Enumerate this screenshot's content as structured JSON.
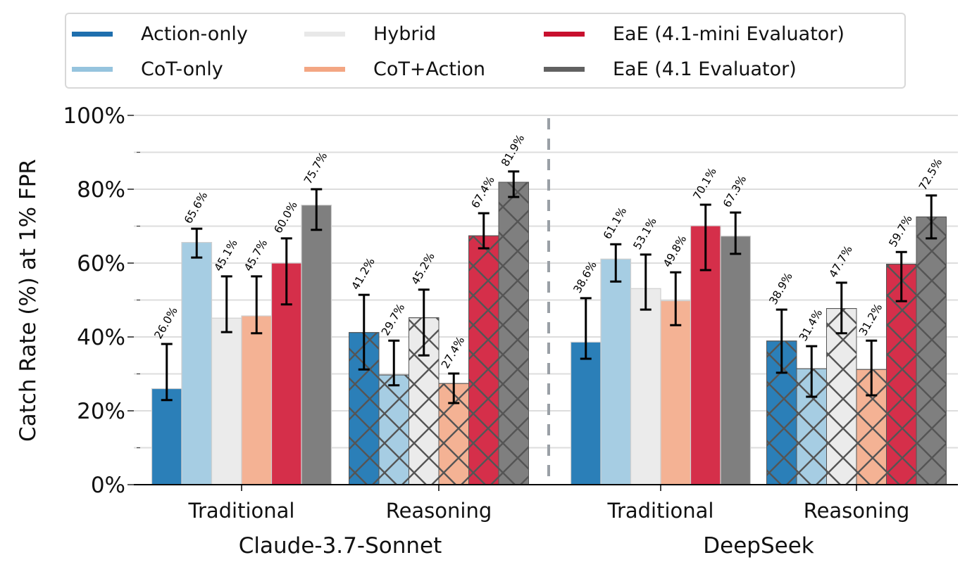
{
  "chart_data": {
    "type": "bar",
    "title": "",
    "ylabel": "Catch Rate (%) at 1% FPR",
    "xlabel": "",
    "ylim": [
      0,
      100
    ],
    "yticks": [
      0,
      20,
      40,
      60,
      80,
      100
    ],
    "ytick_labels": [
      "0%",
      "20%",
      "40%",
      "60%",
      "80%",
      "100%"
    ],
    "minor_yticks": [
      10,
      30,
      50,
      70,
      90
    ],
    "grid": true,
    "legend_position": "top (above plot), 3 columns",
    "groups": [
      {
        "name": "Claude-3.7-Sonnet",
        "categories": [
          "Traditional",
          "Reasoning"
        ]
      },
      {
        "name": "DeepSeek",
        "categories": [
          "Traditional",
          "Reasoning"
        ]
      }
    ],
    "categories": [
      "Claude-3.7-Sonnet / Traditional",
      "Claude-3.7-Sonnet / Reasoning",
      "DeepSeek / Traditional",
      "DeepSeek / Reasoning"
    ],
    "category_labels": [
      "Traditional",
      "Reasoning",
      "Traditional",
      "Reasoning"
    ],
    "hatched_categories": [
      false,
      true,
      false,
      true
    ],
    "series": [
      {
        "name": "Action-only",
        "color": "#2b7fb8",
        "legend_color": "#1f6fae",
        "values": [
          26.0,
          41.2,
          38.6,
          38.9
        ],
        "err_low": [
          22.9,
          31.2,
          34.1,
          30.3
        ],
        "err_high": [
          38.1,
          51.4,
          50.5,
          47.4
        ]
      },
      {
        "name": "CoT-only",
        "color": "#a6cde3",
        "legend_color": "#96c4de",
        "values": [
          65.6,
          29.7,
          61.1,
          31.4
        ],
        "err_low": [
          61.5,
          26.9,
          55.0,
          23.8
        ],
        "err_high": [
          69.3,
          39.0,
          65.1,
          37.5
        ]
      },
      {
        "name": "Hybrid",
        "color": "#ebebeb",
        "legend_color": "#e8e8e8",
        "values": [
          45.1,
          45.2,
          53.1,
          47.7
        ],
        "err_low": [
          41.3,
          35.0,
          47.4,
          41.0
        ],
        "err_high": [
          56.4,
          52.8,
          62.3,
          54.7
        ]
      },
      {
        "name": "CoT+Action",
        "color": "#f4b294",
        "legend_color": "#f3a683",
        "values": [
          45.7,
          27.4,
          49.8,
          31.2
        ],
        "err_low": [
          41.0,
          22.1,
          43.2,
          24.2
        ],
        "err_high": [
          56.4,
          30.1,
          57.5,
          39.0
        ]
      },
      {
        "name": "EaE (4.1-mini Evaluator)",
        "color": "#d52f4a",
        "legend_color": "#c8102e",
        "values": [
          60.0,
          67.4,
          70.1,
          59.7
        ],
        "err_low": [
          48.8,
          64.0,
          58.1,
          49.7
        ],
        "err_high": [
          66.7,
          73.5,
          75.8,
          63.0
        ]
      },
      {
        "name": "EaE (4.1 Evaluator)",
        "color": "#7f7f7f",
        "legend_color": "#616161",
        "values": [
          75.7,
          81.9,
          67.3,
          72.5
        ],
        "err_low": [
          69.0,
          77.9,
          62.5,
          66.7
        ],
        "err_high": [
          80.0,
          84.8,
          73.7,
          78.3
        ]
      }
    ],
    "value_label_suffix": "%",
    "divider": "dashed vertical line between Claude-3.7-Sonnet and DeepSeek groups"
  }
}
